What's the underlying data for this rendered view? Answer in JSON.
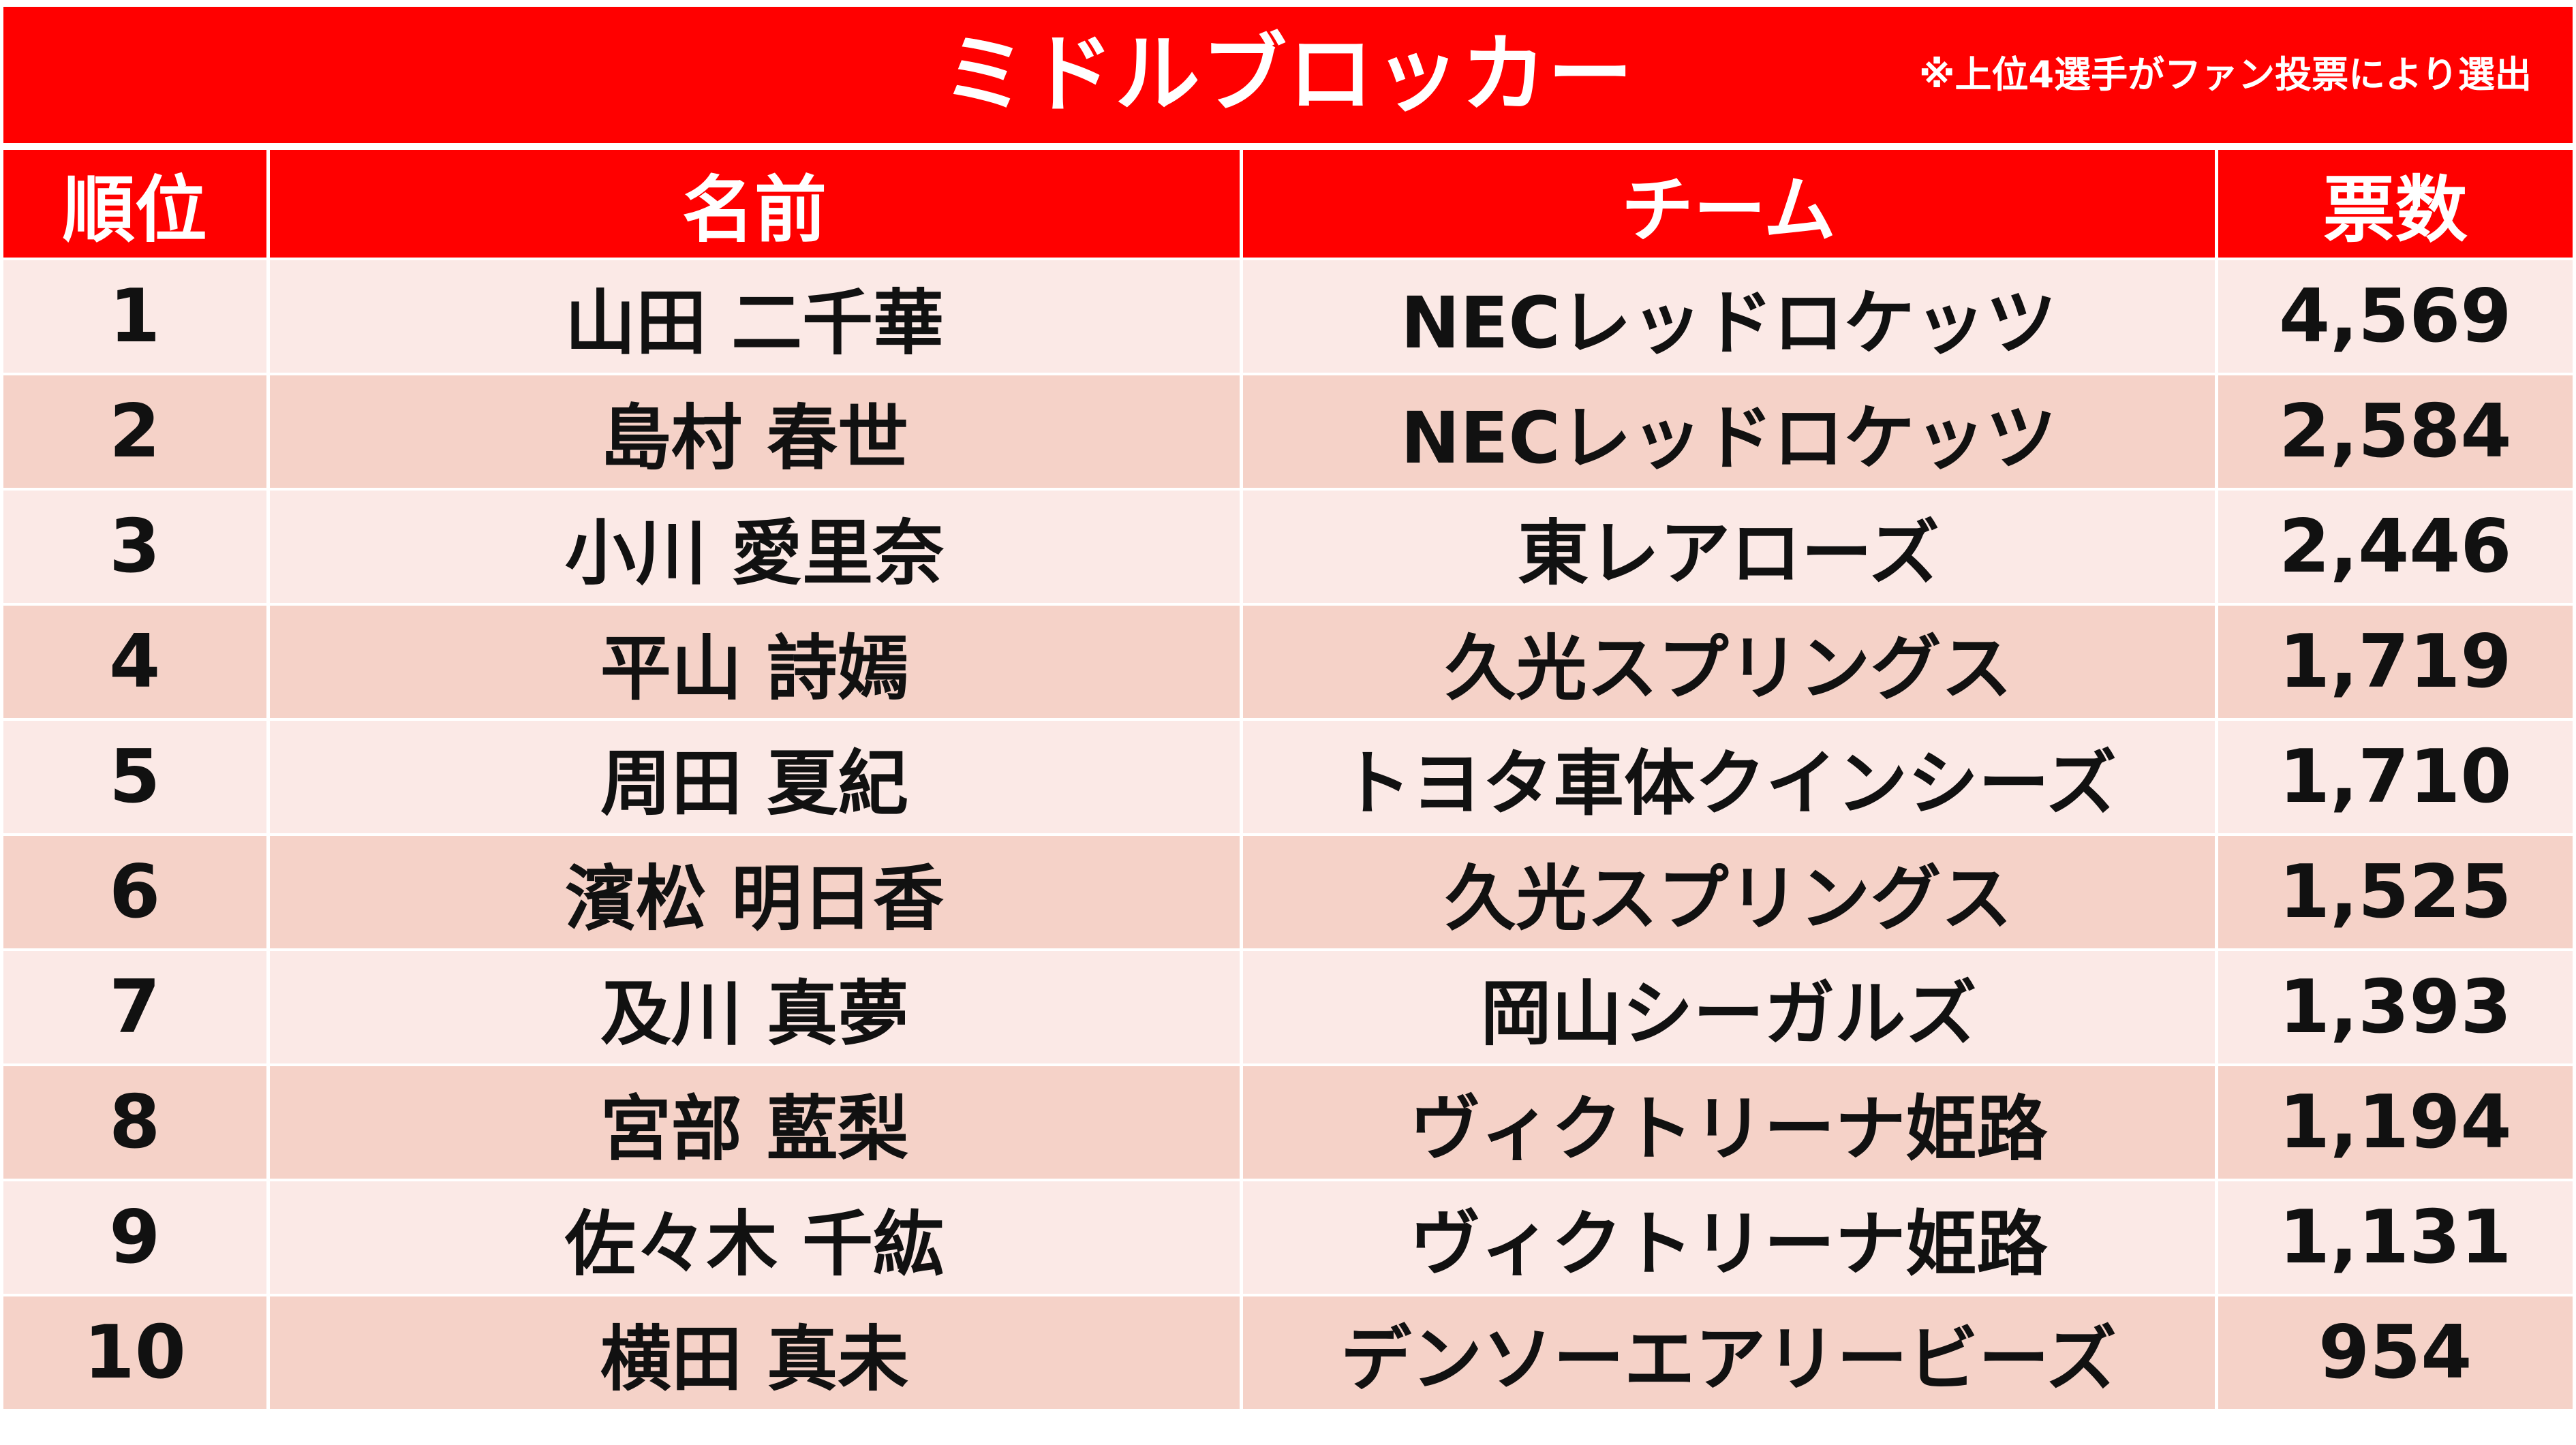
{
  "title": "ミドルブロッカー",
  "note": "※上位4選手がファン投票により選出",
  "headers": {
    "rank": "順位",
    "name": "名前",
    "team": "チーム",
    "votes": "票数"
  },
  "rows": [
    {
      "rank": "1",
      "name": "山田 二千華",
      "team": "NECレッドロケッツ",
      "votes": "4,569"
    },
    {
      "rank": "2",
      "name": "島村 春世",
      "team": "NECレッドロケッツ",
      "votes": "2,584"
    },
    {
      "rank": "3",
      "name": "小川 愛里奈",
      "team": "東レアローズ",
      "votes": "2,446"
    },
    {
      "rank": "4",
      "name": "平山 詩嫣",
      "team": "久光スプリングス",
      "votes": "1,719"
    },
    {
      "rank": "5",
      "name": "周田 夏紀",
      "team": "トヨタ車体クインシーズ",
      "votes": "1,710"
    },
    {
      "rank": "6",
      "name": "濱松 明日香",
      "team": "久光スプリングス",
      "votes": "1,525"
    },
    {
      "rank": "7",
      "name": "及川 真夢",
      "team": "岡山シーガルズ",
      "votes": "1,393"
    },
    {
      "rank": "8",
      "name": "宮部 藍梨",
      "team": "ヴィクトリーナ姫路",
      "votes": "1,194"
    },
    {
      "rank": "9",
      "name": "佐々木 千紘",
      "team": "ヴィクトリーナ姫路",
      "votes": "1,131"
    },
    {
      "rank": "10",
      "name": "横田 真未",
      "team": "デンソーエアリービーズ",
      "votes": "954"
    }
  ],
  "colors": {
    "header_bg": "#ff0000",
    "header_text": "#ffffff",
    "row_light": "#fbe9e6",
    "row_dark": "#f5d2c8",
    "body_text": "#111111"
  }
}
